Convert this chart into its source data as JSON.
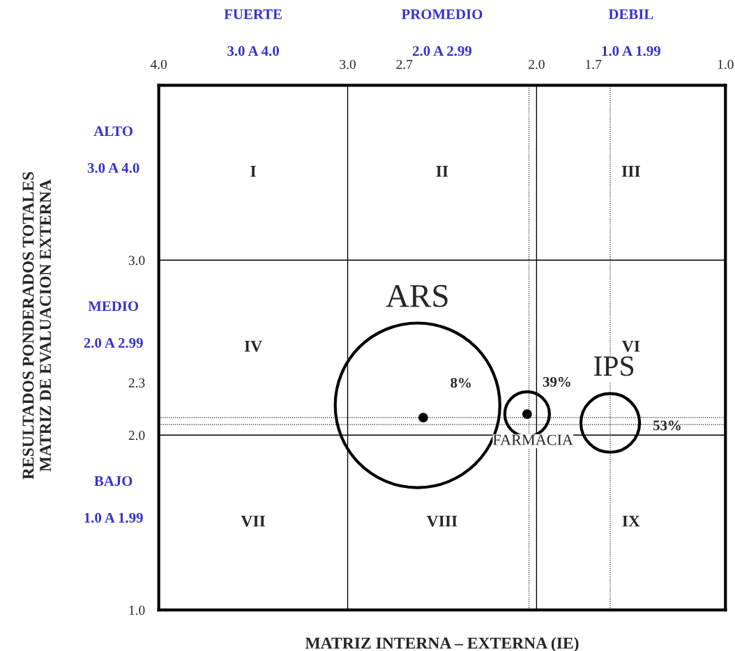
{
  "chart_data": {
    "type": "bubble",
    "xlabel": "MATRIZ INTERNA – EXTERNA (IE)",
    "xlim": [
      4.0,
      1.0
    ],
    "ylim": [
      1.0,
      4.0
    ],
    "xticks": [
      {
        "value": 4,
        "label": "4.0"
      },
      {
        "value": 3,
        "label": "3.0"
      },
      2.7,
      {
        "value": 2,
        "label": "2.0"
      },
      1.7,
      {
        "value": 1,
        "label": "1.0"
      }
    ],
    "yticks": [
      {
        "value": 1,
        "label": "1.0"
      },
      {
        "value": 2,
        "label": "2.0"
      },
      2.3,
      {
        "value": 3,
        "label": "3.0"
      }
    ],
    "series": [
      {
        "name": "ARS",
        "color": "#000000",
        "x": [
          2.63
        ],
        "values": [
          2.17
        ],
        "sizes": [
          1
        ]
      },
      {
        "name": "FARMACIA",
        "color": "#000000",
        "x": [
          2.05
        ],
        "values": [
          2.12
        ],
        "sizes": [
          0.0735
        ]
      },
      {
        "name": "IPS",
        "color": "#000000",
        "x": [
          1.61
        ],
        "values": [
          2.07
        ],
        "sizes": [
          0.127
        ]
      },
      {
        "type": "scatter",
        "color": "#000000",
        "x": [
          2.6,
          2.05
        ],
        "values": [
          2.1,
          2.12
        ]
      }
    ],
    "ref_lines": [
      {
        "axis": "x",
        "value": 3.0,
        "line_style": "solid"
      },
      {
        "axis": "x",
        "value": 2.0,
        "line_style": "solid"
      },
      {
        "axis": "y",
        "value": 3.0,
        "line_style": "solid"
      },
      {
        "axis": "y",
        "value": 2.0,
        "line_style": "solid"
      },
      {
        "axis": "x",
        "value": 2.04,
        "line_style": "dotted"
      },
      {
        "axis": "x",
        "value": 1.61,
        "line_style": "dotted"
      },
      {
        "axis": "y",
        "value": 2.1,
        "line_style": "dotted"
      },
      {
        "axis": "y",
        "value": 2.06,
        "line_style": "dotted"
      }
    ],
    "annotations": [
      "FUERTE",
      "3.0 A 4.0",
      "PROMEDIO",
      "2.0 A 2.99",
      "DEBIL",
      "1.0 A 1.99",
      "ALTO",
      "3.0 A 4.0",
      "MEDIO",
      "2.0 A 2.99",
      "BAJO",
      "1.0 A 1.99",
      "I",
      "II",
      "III",
      "IV",
      "VI",
      "VII",
      "VIII",
      "IX",
      "RESULTADOS PONDERADOS TOTALES\nMATRIZ DE EVALUACION EXTERNA",
      {
        "text": "8%",
        "x": 2.63,
        "y": 2.17
      },
      {
        "text": "39%",
        "x": 2.05,
        "y": 2.12
      },
      {
        "text": "53%",
        "x": 1.61,
        "y": 2.07
      }
    ]
  }
}
